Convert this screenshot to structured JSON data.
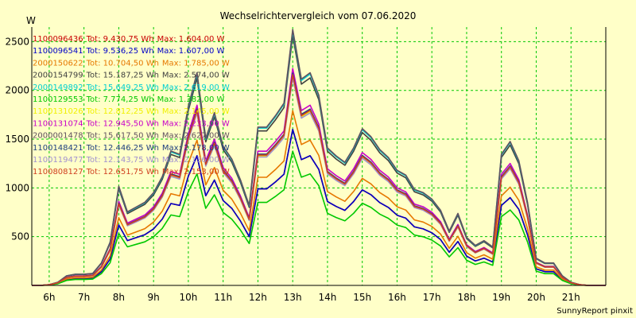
{
  "chart_data": {
    "type": "line",
    "title": "Wechselrichtervergleich vom 07.06.2020",
    "ylabel": "W",
    "xlabel": "",
    "credit": "SunnyReport pinxit",
    "ylim": [
      0,
      2650
    ],
    "xlim": [
      5.5,
      22.0
    ],
    "yticks": [
      500,
      1000,
      1500,
      2000,
      2500
    ],
    "xticks": [
      {
        "x": 6,
        "label": "6h"
      },
      {
        "x": 7,
        "label": "7h"
      },
      {
        "x": 8,
        "label": "8h"
      },
      {
        "x": 9,
        "label": "9h"
      },
      {
        "x": 10,
        "label": "10h"
      },
      {
        "x": 11,
        "label": "11h"
      },
      {
        "x": 12,
        "label": "12h"
      },
      {
        "x": 13,
        "label": "13h"
      },
      {
        "x": 14,
        "label": "14h"
      },
      {
        "x": 15,
        "label": "15h"
      },
      {
        "x": 16,
        "label": "16h"
      },
      {
        "x": 17,
        "label": "17h"
      },
      {
        "x": 18,
        "label": "18h"
      },
      {
        "x": 19,
        "label": "19h"
      },
      {
        "x": 20,
        "label": "20h"
      },
      {
        "x": 21,
        "label": "21h"
      }
    ],
    "grid": true,
    "legend_position": "top-left",
    "x": [
      5.5,
      5.75,
      6,
      6.25,
      6.5,
      6.75,
      7,
      7.25,
      7.5,
      7.75,
      8,
      8.25,
      8.5,
      8.75,
      9,
      9.25,
      9.5,
      9.75,
      10,
      10.25,
      10.5,
      10.75,
      11,
      11.25,
      11.5,
      11.75,
      12,
      12.25,
      12.5,
      12.75,
      13,
      13.25,
      13.5,
      13.75,
      14,
      14.25,
      14.5,
      14.75,
      15,
      15.25,
      15.5,
      15.75,
      16,
      16.25,
      16.5,
      16.75,
      17,
      17.25,
      17.5,
      17.75,
      18,
      18.25,
      18.5,
      18.75,
      19,
      19.25,
      19.5,
      19.75,
      20,
      20.25,
      20.5,
      20.75,
      21,
      21.25,
      21.5,
      21.75,
      22
    ],
    "base_profile": [
      0,
      0,
      5,
      20,
      60,
      70,
      70,
      75,
      140,
      270,
      620,
      460,
      490,
      520,
      580,
      680,
      840,
      820,
      1120,
      1330,
      920,
      1080,
      870,
      790,
      660,
      500,
      990,
      990,
      1060,
      1140,
      1600,
      1290,
      1330,
      1190,
      860,
      810,
      770,
      860,
      980,
      930,
      850,
      800,
      720,
      690,
      600,
      580,
      540,
      470,
      340,
      450,
      300,
      250,
      280,
      240,
      820,
      900,
      780,
      520,
      170,
      140,
      140,
      60,
      20,
      5,
      0,
      0,
      0
    ],
    "series": [
      {
        "name": "1100096436",
        "total": "Tot: 9.430,75 Wh",
        "max": "Max: 1.604,00 W",
        "color": "#c80000",
        "scale": 1.0
      },
      {
        "name": "1100096541",
        "total": "Tot: 9.536,25 Wh",
        "max": "Max: 1.607,00 W",
        "color": "#0000c8",
        "scale": 1.0
      },
      {
        "name": "2000150622",
        "total": "Tot: 10.704,50 Wh",
        "max": "Max: 1.785,00 W",
        "color": "#e67800",
        "scale": 1.12
      },
      {
        "name": "2000154799",
        "total": "Tot: 15.187,25 Wh",
        "max": "Max: 2.574,00 W",
        "color": "#404040",
        "scale": 1.6
      },
      {
        "name": "2000149892",
        "total": "Tot: 15.649,25 Wh",
        "max": "Max: 2.619,00 W",
        "color": "#00d0d0",
        "scale": 1.63
      },
      {
        "name": "1100129553",
        "total": "Tot: 7.774,25 Wh",
        "max": "Max: 1.382,00 W",
        "color": "#00c800",
        "scale": 0.86
      },
      {
        "name": "1100131026",
        "total": "Tot: 12.812,25 Wh",
        "max": "Max: 2.145,00 W",
        "color": "#f0f000",
        "scale": 1.34
      },
      {
        "name": "1100131074",
        "total": "Tot: 12.945,50 Wh",
        "max": "Max: 2.233,00 W",
        "color": "#c800c8",
        "scale": 1.39
      },
      {
        "name": "2000001478",
        "total": "Tot: 15.617,50 Wh",
        "max": "Max: 2.627,00 W",
        "color": "#605060",
        "scale": 1.64
      },
      {
        "name": "1100148421",
        "total": "Tot: 12.446,25 Wh",
        "max": "Max: 2.178,00 W",
        "color": "#204080",
        "scale": 1.36
      },
      {
        "name": "1100119477",
        "total": "Tot: 12.143,75 Wh",
        "max": "Max: 2.136,00 W",
        "color": "#a090d0",
        "scale": 1.33
      },
      {
        "name": "1100808127",
        "total": "Tot: 12.651,75 Wh",
        "max": "Max: 2.153,00 W",
        "color": "#d04020",
        "scale": 1.35
      }
    ]
  }
}
